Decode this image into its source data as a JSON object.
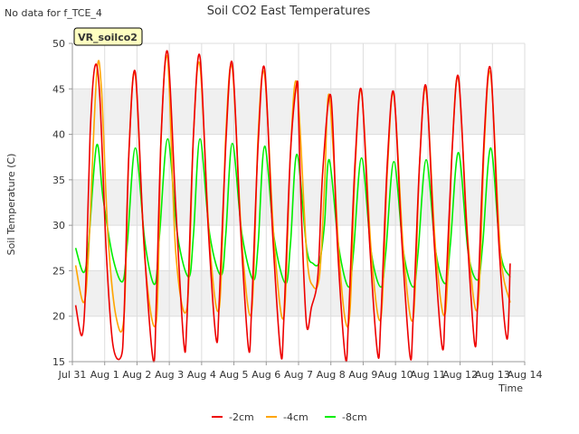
{
  "header": {
    "nodata_note": "No data for f_TCE_4",
    "title": "Soil CO2 East Temperatures"
  },
  "badge": {
    "label": "VR_soilco2",
    "text_color": "#990000",
    "fill": "#ffffc0"
  },
  "chart_data": {
    "type": "line",
    "title": "Soil CO2 East Temperatures",
    "xlabel": "Time",
    "ylabel": "Soil Temperature (C)",
    "ylim": [
      15,
      50
    ],
    "xlim_days": [
      0,
      14
    ],
    "x_unit_note": "x values are days after Jul 31 00:00",
    "yticks": [
      15,
      20,
      25,
      30,
      35,
      40,
      45,
      50
    ],
    "xticks": [
      {
        "pos": 0,
        "label": "Jul 31"
      },
      {
        "pos": 1,
        "label": "Aug 1"
      },
      {
        "pos": 2,
        "label": "Aug 2"
      },
      {
        "pos": 3,
        "label": "Aug 3"
      },
      {
        "pos": 4,
        "label": "Aug 4"
      },
      {
        "pos": 5,
        "label": "Aug 5"
      },
      {
        "pos": 6,
        "label": "Aug 6"
      },
      {
        "pos": 7,
        "label": "Aug 7"
      },
      {
        "pos": 8,
        "label": "Aug 8"
      },
      {
        "pos": 9,
        "label": "Aug 9"
      },
      {
        "pos": 10,
        "label": "Aug 10"
      },
      {
        "pos": 11,
        "label": "Aug 11"
      },
      {
        "pos": 12,
        "label": "Aug 12"
      },
      {
        "pos": 13,
        "label": "Aug 13"
      },
      {
        "pos": 14,
        "label": "Aug 14"
      }
    ],
    "grid": true,
    "bands": "alternating light gray horizontal bands",
    "legend_position": "bottom-center",
    "series": [
      {
        "name": "-2cm",
        "color": "#ee0000",
        "x": [
          0.1,
          0.3,
          0.42,
          0.55,
          0.7,
          0.85,
          1.05,
          1.25,
          1.5,
          1.6,
          1.75,
          1.95,
          2.2,
          2.5,
          2.6,
          2.75,
          2.95,
          3.2,
          3.45,
          3.55,
          3.75,
          3.95,
          4.2,
          4.45,
          4.55,
          4.75,
          4.95,
          5.2,
          5.45,
          5.55,
          5.75,
          5.95,
          6.2,
          6.45,
          6.55,
          6.75,
          6.95,
          7.0,
          7.1,
          7.25,
          7.4,
          7.6,
          7.75,
          8.0,
          8.2,
          8.45,
          8.55,
          8.75,
          8.95,
          9.2,
          9.45,
          9.55,
          9.75,
          9.95,
          10.2,
          10.45,
          10.55,
          10.75,
          10.95,
          11.2,
          11.45,
          11.55,
          11.75,
          11.95,
          12.2,
          12.45,
          12.55,
          12.75,
          12.95,
          13.2,
          13.45,
          13.55
        ],
        "y": [
          21.2,
          17.9,
          24.0,
          40.0,
          47.5,
          44.0,
          27.0,
          17.0,
          15.5,
          20.0,
          38.0,
          46.8,
          29.0,
          15.2,
          22.0,
          40.0,
          49.0,
          32.0,
          17.0,
          20.0,
          40.0,
          48.5,
          30.0,
          17.5,
          22.0,
          39.0,
          47.8,
          30.0,
          16.5,
          21.0,
          39.0,
          47.2,
          29.0,
          15.8,
          20.0,
          38.0,
          45.7,
          42.0,
          30.0,
          19.0,
          21.0,
          24.5,
          36.0,
          44.2,
          28.0,
          15.4,
          20.0,
          37.0,
          44.8,
          28.0,
          15.8,
          20.0,
          37.0,
          44.5,
          28.0,
          15.6,
          20.0,
          37.0,
          45.2,
          28.0,
          16.5,
          22.0,
          38.0,
          46.3,
          30.0,
          17.0,
          22.0,
          40.0,
          47.0,
          28.0,
          17.5,
          25.8
        ]
      },
      {
        "name": "-4cm",
        "color": "#ffa500",
        "x": [
          0.1,
          0.35,
          0.5,
          0.75,
          0.9,
          1.1,
          1.35,
          1.6,
          1.75,
          1.95,
          2.25,
          2.6,
          2.75,
          2.95,
          3.2,
          3.55,
          3.75,
          3.95,
          4.25,
          4.55,
          4.75,
          4.95,
          5.25,
          5.55,
          5.75,
          5.95,
          6.25,
          6.55,
          6.75,
          6.95,
          7.25,
          7.45,
          7.65,
          7.8,
          7.95,
          8.25,
          8.45,
          8.6,
          8.75,
          8.95,
          9.25,
          9.55,
          9.75,
          9.95,
          10.25,
          10.55,
          10.75,
          10.95,
          11.25,
          11.55,
          11.75,
          11.95,
          12.25,
          12.55,
          12.75,
          12.95,
          13.25,
          13.55
        ],
        "y": [
          25.6,
          21.5,
          27.0,
          46.5,
          45.0,
          29.0,
          20.0,
          20.0,
          38.0,
          46.5,
          26.0,
          19.5,
          40.0,
          48.2,
          27.0,
          21.0,
          40.0,
          47.5,
          28.0,
          21.0,
          40.0,
          47.2,
          28.0,
          20.5,
          40.0,
          46.5,
          28.0,
          20.0,
          38.0,
          45.5,
          27.0,
          23.3,
          24.5,
          34.0,
          44.3,
          27.0,
          19.5,
          21.0,
          36.0,
          44.7,
          27.0,
          19.8,
          36.0,
          44.3,
          27.0,
          19.8,
          37.0,
          44.8,
          27.0,
          20.5,
          38.0,
          46.0,
          28.0,
          21.0,
          39.0,
          46.5,
          27.0,
          21.5
        ]
      },
      {
        "name": "-8cm",
        "color": "#00ee00",
        "x": [
          0.1,
          0.35,
          0.5,
          0.75,
          0.95,
          1.25,
          1.55,
          1.7,
          1.95,
          2.25,
          2.55,
          2.7,
          2.95,
          3.25,
          3.6,
          3.75,
          3.95,
          4.25,
          4.6,
          4.75,
          4.95,
          5.25,
          5.6,
          5.75,
          5.95,
          6.25,
          6.6,
          6.75,
          6.95,
          7.25,
          7.45,
          7.65,
          7.8,
          7.95,
          8.25,
          8.55,
          8.7,
          8.95,
          9.25,
          9.55,
          9.7,
          9.95,
          10.25,
          10.55,
          10.7,
          10.95,
          11.25,
          11.55,
          11.7,
          11.95,
          12.25,
          12.55,
          12.7,
          12.95,
          13.25,
          13.55
        ],
        "y": [
          27.5,
          24.8,
          28.0,
          38.8,
          33.0,
          26.5,
          23.8,
          28.0,
          38.5,
          28.0,
          23.5,
          29.0,
          39.5,
          29.0,
          24.3,
          29.0,
          39.5,
          29.0,
          24.5,
          29.0,
          39.0,
          29.0,
          24.0,
          28.0,
          38.7,
          28.5,
          23.6,
          28.0,
          37.8,
          27.5,
          25.8,
          26.0,
          30.0,
          37.2,
          27.5,
          23.2,
          27.0,
          37.4,
          27.0,
          23.2,
          27.0,
          37.0,
          27.0,
          23.2,
          27.0,
          37.2,
          27.0,
          23.6,
          28.0,
          38.0,
          27.0,
          24.0,
          28.0,
          38.5,
          27.0,
          24.3
        ]
      }
    ]
  }
}
